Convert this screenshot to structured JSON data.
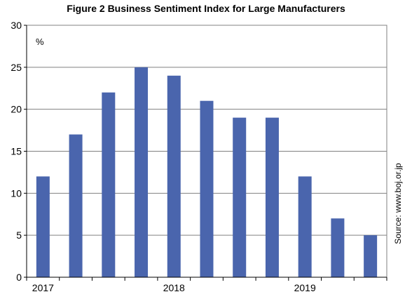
{
  "chart_data": {
    "type": "bar",
    "title": "Figure 2  Business Sentiment Index for Large Manufacturers",
    "unit_label": "%",
    "source": "Source: www.boj.or.jp",
    "categories": [
      "",
      "",
      "",
      "",
      "",
      "",
      "",
      "",
      "",
      "",
      ""
    ],
    "values": [
      12,
      17,
      22,
      25,
      24,
      21,
      19,
      19,
      12,
      7,
      5
    ],
    "ylim": [
      0,
      30
    ],
    "y_ticks": [
      0,
      5,
      10,
      15,
      20,
      25,
      30
    ],
    "year_labels": [
      {
        "text": "2017",
        "index": 0
      },
      {
        "text": "2018",
        "index": 4
      },
      {
        "text": "2019",
        "index": 8
      }
    ],
    "grid": true,
    "legend": "none",
    "bar_color": "#4a65ad"
  }
}
